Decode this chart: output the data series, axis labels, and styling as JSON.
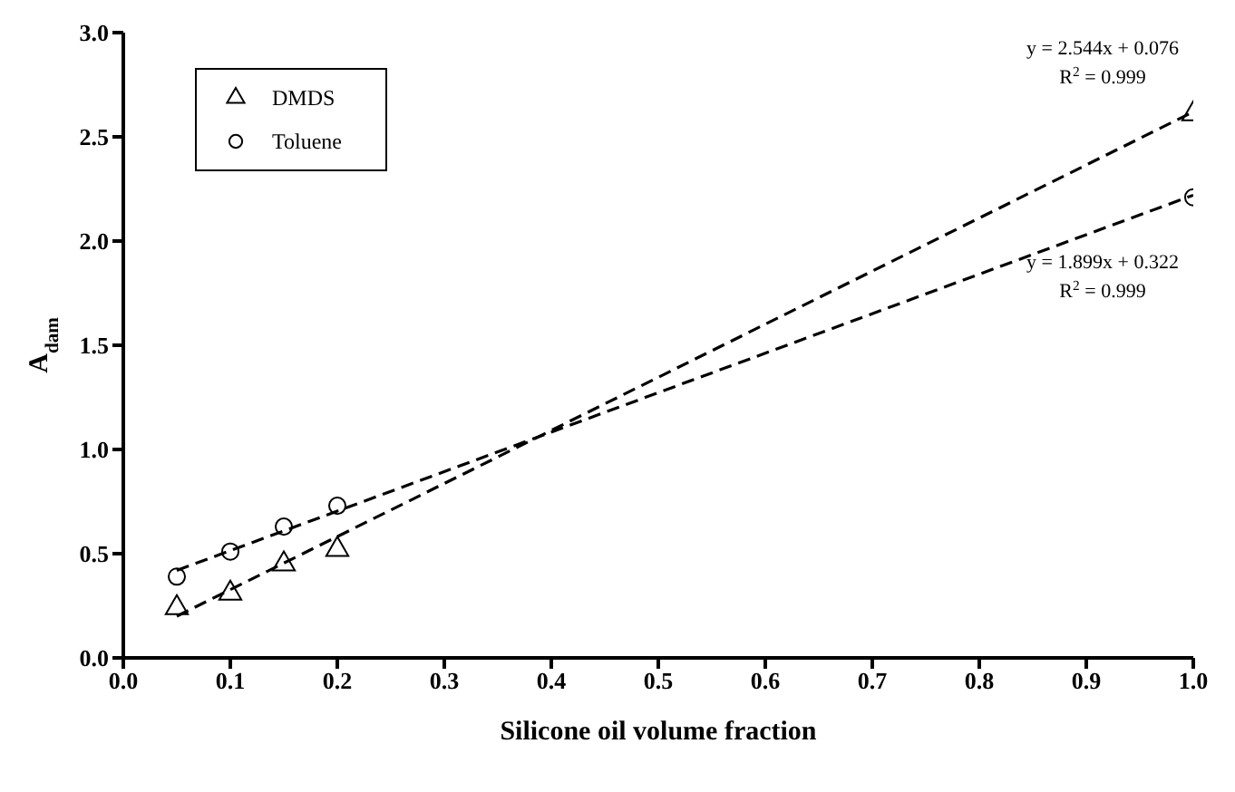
{
  "chart_data": {
    "type": "scatter",
    "xlabel": "Silicone oil volume fraction",
    "ylabel": "A$_{dam}$",
    "series": [
      {
        "name": "DMDS",
        "marker": "triangle",
        "color": "#000000",
        "x": [
          0.05,
          0.1,
          0.15,
          0.2,
          1.0
        ],
        "values": [
          0.24,
          0.31,
          0.45,
          0.52,
          2.61
        ]
      },
      {
        "name": "Toluene",
        "marker": "circle",
        "color": "#000000",
        "x": [
          0.05,
          0.1,
          0.15,
          0.2,
          1.0
        ],
        "values": [
          0.39,
          0.51,
          0.63,
          0.73,
          2.21
        ]
      },
      {
        "type": "line",
        "marker": "none",
        "line_style": "dashed",
        "color": "#000000",
        "x": [
          0.05,
          1.0
        ],
        "values": [
          0.2,
          2.62
        ]
      },
      {
        "type": "line",
        "marker": "none",
        "line_style": "dashed",
        "color": "#000000",
        "x": [
          0.05,
          1.0
        ],
        "values": [
          0.42,
          2.22
        ]
      }
    ],
    "annotations": [
      "y = 2.544x + 0.076",
      "R$^{2}$ = 0.999",
      "y = 1.899x + 0.322",
      "R$^{2}$ = 0.999"
    ],
    "xlim": [
      0,
      1
    ],
    "xticks": [
      {
        "value": 0,
        "label": "0.0"
      },
      {
        "value": 0.1,
        "label": "0.1"
      },
      {
        "value": 0.2,
        "label": "0.2"
      },
      {
        "value": 0.3,
        "label": "0.3"
      },
      {
        "value": 0.4,
        "label": "0.4"
      },
      {
        "value": 0.5,
        "label": "0.5"
      },
      {
        "value": 0.6,
        "label": "0.6"
      },
      {
        "value": 0.7,
        "label": "0.7"
      },
      {
        "value": 0.8,
        "label": "0.8"
      },
      {
        "value": 0.9,
        "label": "0.9"
      },
      {
        "value": 1,
        "label": "1.0"
      }
    ],
    "ylim": [
      0,
      3
    ],
    "yticks": [
      {
        "value": 0,
        "label": "0.0"
      },
      {
        "value": 0.5,
        "label": "0.5"
      },
      {
        "value": 1,
        "label": "1.0"
      },
      {
        "value": 1.5,
        "label": "1.5"
      },
      {
        "value": 2,
        "label": "2.0"
      },
      {
        "value": 2.5,
        "label": "2.5"
      },
      {
        "value": 3,
        "label": "3.0"
      }
    ],
    "grid": false,
    "legend": "top left"
  }
}
